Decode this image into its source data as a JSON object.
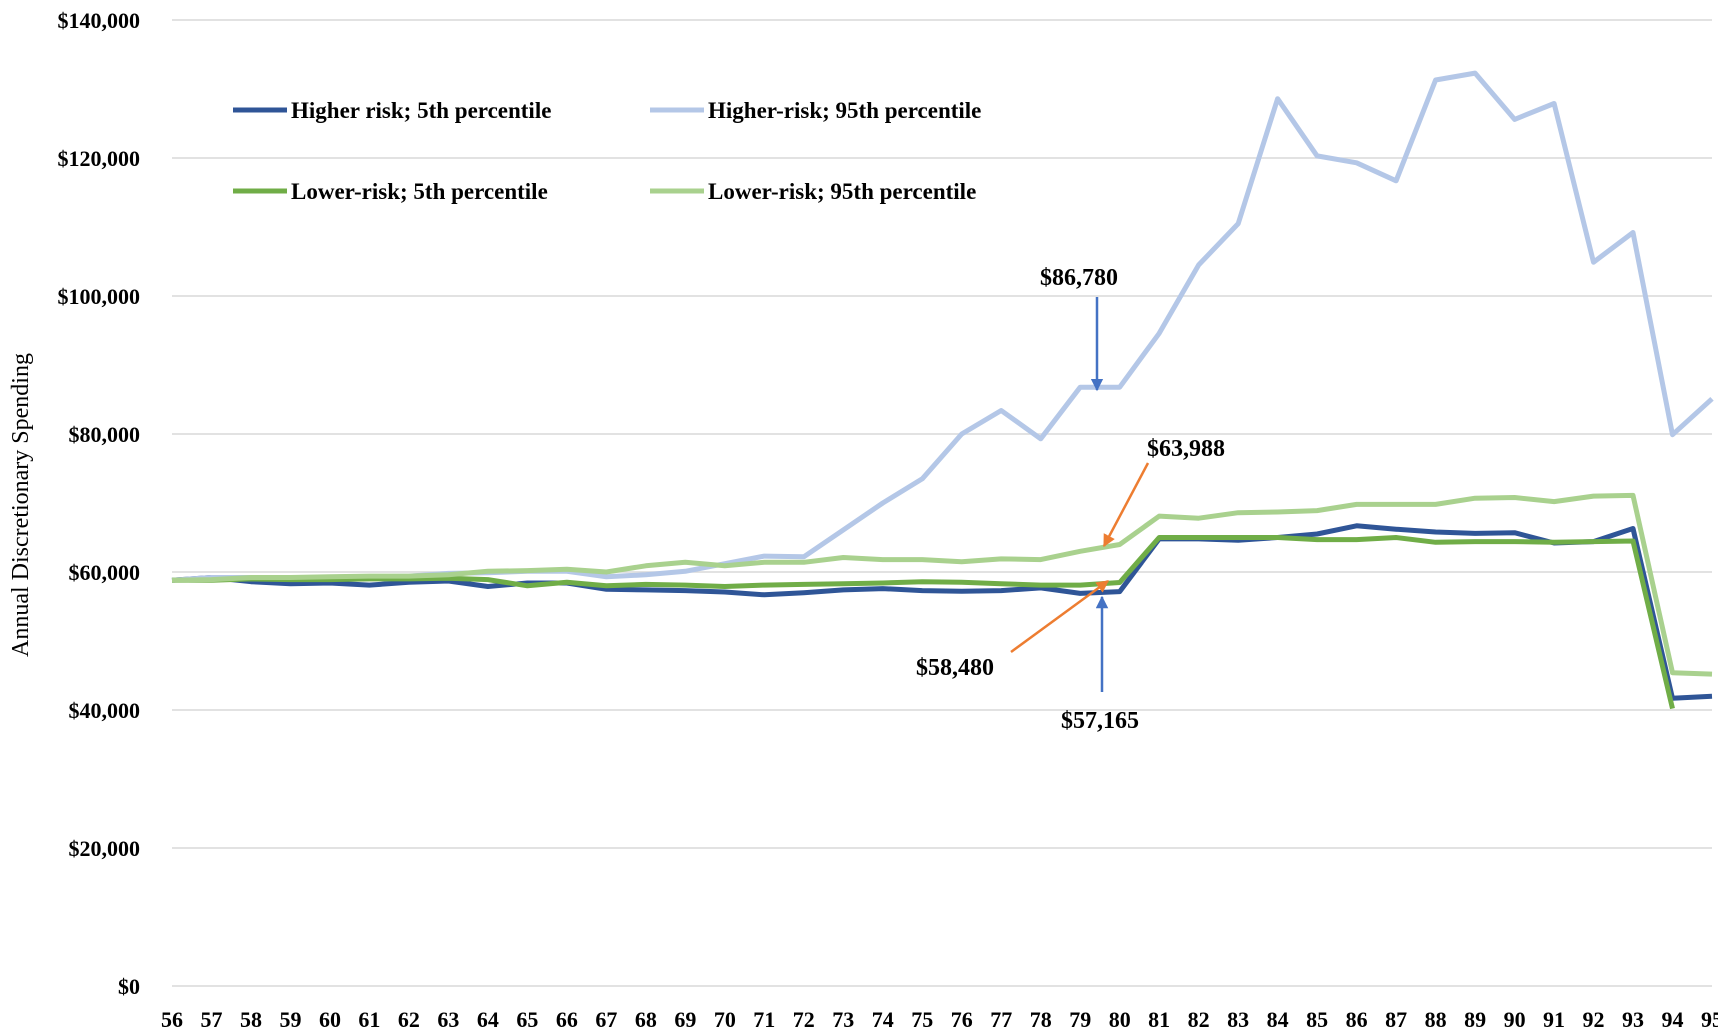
{
  "chart_data": {
    "type": "line",
    "title": "",
    "xlabel": "",
    "ylabel": "Annual Discretionary Spending",
    "ylim": [
      0,
      140000
    ],
    "yticks": [
      {
        "value": 0,
        "label": "$0"
      },
      {
        "value": 20000,
        "label": "$20,000"
      },
      {
        "value": 40000,
        "label": "$40,000"
      },
      {
        "value": 60000,
        "label": "$60,000"
      },
      {
        "value": 80000,
        "label": "$80,000"
      },
      {
        "value": 100000,
        "label": "$100,000"
      },
      {
        "value": 120000,
        "label": "$120,000"
      },
      {
        "value": 140000,
        "label": "$140,000"
      }
    ],
    "x": [
      56,
      57,
      58,
      59,
      60,
      61,
      62,
      63,
      64,
      65,
      66,
      67,
      68,
      69,
      70,
      71,
      72,
      73,
      74,
      75,
      76,
      77,
      78,
      79,
      80,
      81,
      82,
      83,
      84,
      85,
      86,
      87,
      88,
      89,
      90,
      91,
      92,
      93,
      94,
      95
    ],
    "grid": true,
    "legend_position": "top-left",
    "series": [
      {
        "name": "Higher risk; 5th percentile",
        "color": "#2f5597",
        "values": [
          58800,
          59200,
          58600,
          58300,
          58400,
          58100,
          58500,
          58700,
          57900,
          58400,
          58400,
          57500,
          57400,
          57300,
          57100,
          56700,
          57000,
          57400,
          57600,
          57300,
          57200,
          57300,
          57700,
          56900,
          57165,
          64800,
          64800,
          64600,
          65000,
          65500,
          66700,
          66200,
          65800,
          65600,
          65700,
          64200,
          64400,
          66300,
          41700,
          42000
        ]
      },
      {
        "name": "Higher-risk; 95th percentile",
        "color": "#b4c7e7",
        "values": [
          58800,
          59200,
          59200,
          59100,
          59200,
          59300,
          59400,
          59800,
          59900,
          60100,
          60100,
          59300,
          59600,
          60100,
          61200,
          62300,
          62200,
          66100,
          70000,
          73500,
          80000,
          83400,
          79300,
          86780,
          86780,
          94600,
          104500,
          110500,
          128600,
          120300,
          119300,
          116700,
          131300,
          132300,
          125600,
          127900,
          104900,
          109200,
          79900,
          85100
        ]
      },
      {
        "name": "Lower-risk; 5th percentile",
        "color": "#70ad47",
        "values": [
          58800,
          58800,
          59000,
          58900,
          58900,
          59000,
          59000,
          59100,
          58900,
          58000,
          58500,
          58000,
          58200,
          58100,
          57900,
          58100,
          58200,
          58300,
          58400,
          58600,
          58500,
          58300,
          58100,
          58100,
          58480,
          65000,
          65000,
          65000,
          65000,
          64700,
          64700,
          65000,
          64300,
          64400,
          64400,
          64300,
          64400,
          64500,
          40200,
          null
        ]
      },
      {
        "name": "Lower-risk; 95th percentile",
        "color": "#a9d18e",
        "values": [
          58800,
          58900,
          59200,
          59200,
          59300,
          59400,
          59400,
          59600,
          60100,
          60200,
          60400,
          60000,
          60900,
          61400,
          60900,
          61400,
          61400,
          62100,
          61800,
          61800,
          61500,
          61900,
          61800,
          63000,
          63988,
          68100,
          67800,
          68600,
          68700,
          68900,
          69800,
          69800,
          69800,
          70700,
          70800,
          70200,
          71000,
          71100,
          45400,
          45200
        ]
      }
    ],
    "annotations": [
      {
        "text": "$86,780",
        "color": "#4472c4"
      },
      {
        "text": "$63,988",
        "color": "#ed7d31"
      },
      {
        "text": "$58,480",
        "color": "#ed7d31"
      },
      {
        "text": "$57,165",
        "color": "#4472c4"
      }
    ]
  }
}
